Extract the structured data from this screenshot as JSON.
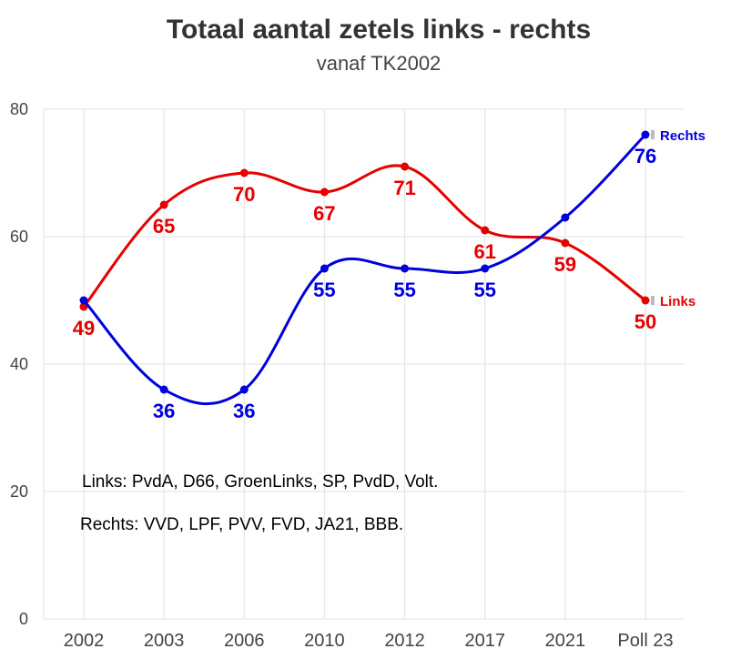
{
  "chart_data": {
    "type": "line",
    "title": "Totaal aantal zetels links - rechts",
    "subtitle": "vanaf TK2002",
    "categories": [
      "2002",
      "2003",
      "2006",
      "2010",
      "2012",
      "2017",
      "2021",
      "Poll 23"
    ],
    "ylim": [
      0,
      80
    ],
    "yticks": [
      0,
      20,
      40,
      60,
      80
    ],
    "grid": true,
    "series": [
      {
        "name": "Links",
        "color": "#e60000",
        "values": [
          49,
          65,
          70,
          67,
          71,
          61,
          59,
          50
        ],
        "labels": [
          "49",
          "65",
          "70",
          "67",
          "71",
          "61",
          "59",
          "50"
        ],
        "label_position": [
          "below",
          "below",
          "below",
          "below",
          "below",
          "below",
          "below",
          "below"
        ]
      },
      {
        "name": "Rechts",
        "color": "#0000dd",
        "values": [
          50,
          36,
          36,
          55,
          55,
          55,
          63,
          76
        ],
        "labels": [
          "",
          "36",
          "36",
          "55",
          "55",
          "55",
          "",
          "76"
        ],
        "label_position": [
          "below",
          "below",
          "below",
          "below",
          "below",
          "below",
          "below",
          "below"
        ]
      }
    ],
    "annotations": [
      {
        "text": "Links: PvdA, D66, GroenLinks, SP, PvdD, Volt.",
        "color": "#e60000"
      },
      {
        "text": "Rechts: VVD, LPF, PVV, FVD, JA21, BBB.",
        "color": "#0000dd"
      }
    ]
  }
}
